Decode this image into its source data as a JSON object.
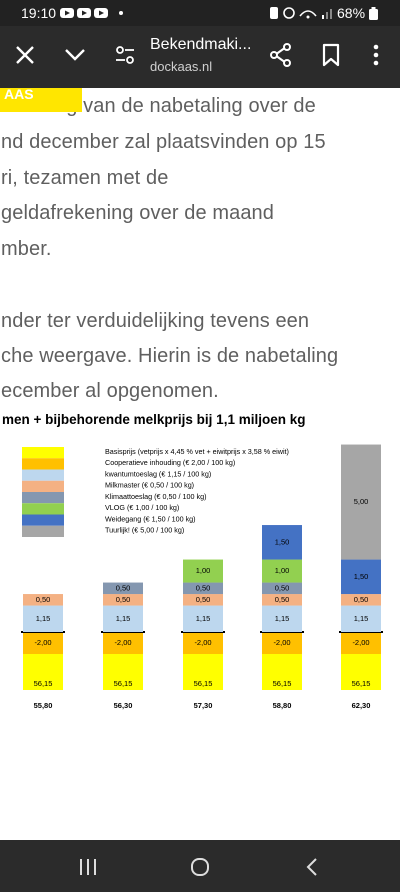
{
  "status_bar": {
    "time": "19:10",
    "battery": "68%"
  },
  "toolbar": {
    "title": "Bekendmaki...",
    "url": "dockaas.nl"
  },
  "tag": "AAS",
  "article": {
    "paragraphs": [
      {
        "lines": [
          "tbetaling van de nabetaling over de",
          "nd december zal plaatsvinden op 15",
          "ri, tezamen met de",
          "geldafrekening over de maand",
          "mber."
        ]
      },
      {
        "lines": [
          "nder ter verduidelijking tevens een",
          "che weergave. Hierin is de nabetaling",
          "ecember al opgenomen."
        ]
      }
    ]
  },
  "chart_data": {
    "type": "stacked-bar",
    "title": "men + bijbehorende melkprijs bij 1,1 miljoen kg",
    "series": [
      {
        "name": "Basisprijs (vetprijs x 4,45 % vet + eiwitprijs x 3,58 % eiwit)",
        "color": "#ffff00",
        "values": [
          56.15,
          56.15,
          56.15,
          56.15,
          56.15
        ],
        "value_labels": [
          "56,15",
          "56,15",
          "56,15",
          "56,15",
          "56,15"
        ]
      },
      {
        "name": "Cooperatieve inhouding (€ 2,00 / 100 kg)",
        "color": "#ffc000",
        "values": [
          -2,
          -2,
          -2,
          -2,
          -2
        ],
        "value_labels": [
          "-2,00",
          "-2,00",
          "-2,00",
          "-2,00",
          "-2,00"
        ]
      },
      {
        "name": "kwantumtoeslag (€ 1,15 / 100 kg)",
        "color": "#bdd7ee",
        "values": [
          1.15,
          1.15,
          1.15,
          1.15,
          1.15
        ],
        "value_labels": [
          "1,15",
          "1,15",
          "1,15",
          "1,15",
          "1,15"
        ]
      },
      {
        "name": "Milkmaster (€ 0,50 / 100 kg)",
        "color": "#f4b183",
        "values": [
          0.5,
          0.5,
          0.5,
          0.5,
          0.5
        ],
        "value_labels": [
          "0,50",
          "0,50",
          "0,50",
          "0,50",
          "0,50"
        ]
      },
      {
        "name": "Klimaattoeslag (€ 0,50 / 100 kg)",
        "color": "#8497b0",
        "values": [
          null,
          0.5,
          0.5,
          0.5,
          null
        ],
        "value_labels": [
          null,
          "0,50",
          "0,50",
          "0,50",
          null
        ]
      },
      {
        "name": "VLOG (€ 1,00 / 100 kg)",
        "color": "#92d050",
        "values": [
          null,
          null,
          1,
          1,
          null
        ],
        "value_labels": [
          null,
          null,
          "1,00",
          "1,00",
          null
        ]
      },
      {
        "name": "Weidegang (€ 1,50 / 100 kg)",
        "color": "#4472c4",
        "values": [
          null,
          null,
          null,
          1.5,
          1.5
        ],
        "value_labels": [
          null,
          null,
          null,
          "1,50",
          "1,50"
        ]
      },
      {
        "name": "Tuurlijk! (€ 5,00 / 100 kg)",
        "color": "#a6a6a6",
        "values": [
          null,
          null,
          null,
          null,
          5
        ],
        "value_labels": [
          null,
          null,
          null,
          null,
          "5,00"
        ]
      }
    ],
    "totals": [
      55.8,
      56.3,
      57.3,
      58.8,
      62.3
    ],
    "totals_labels": [
      "55,80",
      "56,30",
      "57,30",
      "58,80",
      "62,30"
    ]
  }
}
